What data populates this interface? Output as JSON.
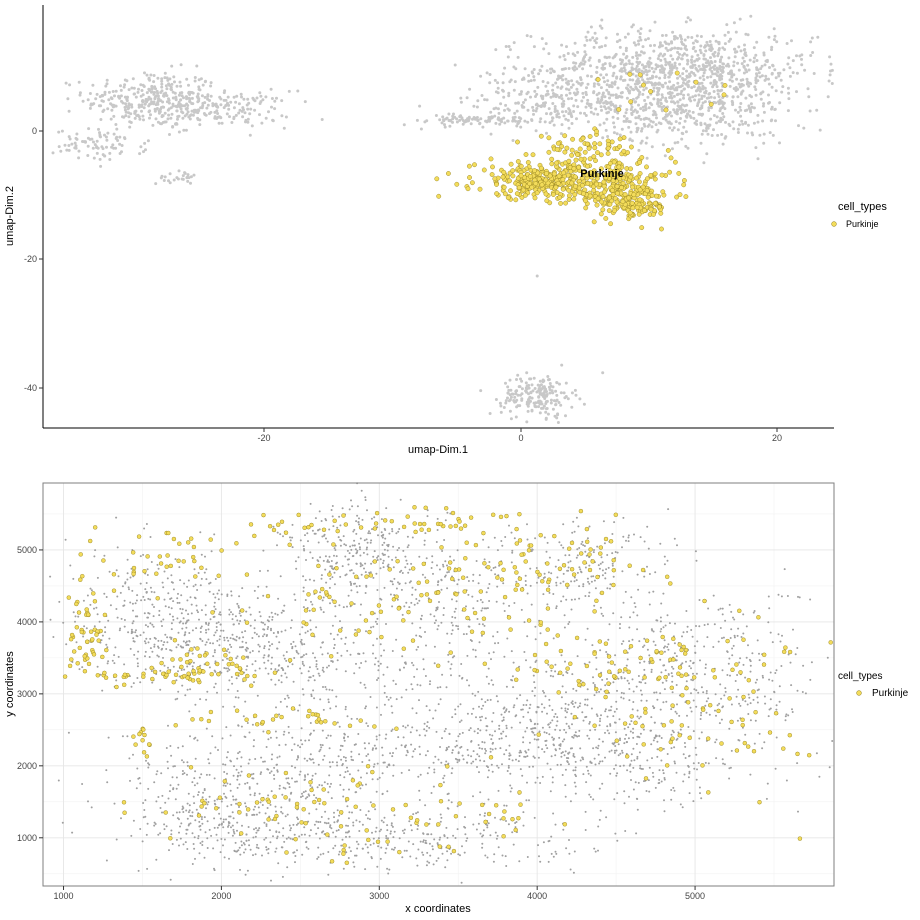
{
  "colors": {
    "background": "#ffffff",
    "grey_points": "#c8c8c8",
    "grey_points_spatial": "#a0a0a0",
    "highlight_fill": "#f3dc5a",
    "highlight_stroke": "#8c7a1a",
    "axis": "#000000",
    "grid": "#e6e6e6",
    "panel_border": "#7f7f7f"
  },
  "chart_data": [
    {
      "type": "scatter",
      "xlabel": "umap-Dim.1",
      "ylabel": "umap-Dim.2",
      "xlim": [
        -37.5,
        24.5
      ],
      "ylim": [
        -46,
        19
      ],
      "x_ticks": [
        -20,
        0,
        20
      ],
      "y_ticks": [
        0,
        -20,
        -40
      ],
      "tick_labels_x": [
        "-20",
        "0",
        "20"
      ],
      "tick_labels_y": [
        "0",
        "-20",
        "-40"
      ],
      "grid": false,
      "legend": {
        "title": "cell_types",
        "entries": [
          "Purkinje"
        ],
        "placement": "right"
      },
      "annotations": [
        {
          "text": "Purkinje",
          "x": 6.3,
          "y": -6.5
        }
      ],
      "series": [
        {
          "style": "grey",
          "clusters": [
            {
              "center": [
                -29,
                4.5
              ],
              "sd": [
                2.6,
                2.2
              ],
              "n": 300
            },
            {
              "center": [
                -24,
                3
              ],
              "sd": [
                3.0,
                1.4
              ],
              "n": 180
            },
            {
              "center": [
                -33,
                -2.5
              ],
              "sd": [
                1.8,
                1.2
              ],
              "n": 80
            },
            {
              "center": [
                -27,
                -7.5
              ],
              "sd": [
                0.8,
                0.5
              ],
              "n": 25
            },
            {
              "center": [
                12,
                9
              ],
              "sd": [
                5.5,
                3.2
              ],
              "n": 900
            },
            {
              "center": [
                4,
                4
              ],
              "sd": [
                4.0,
                2.2
              ],
              "n": 300
            },
            {
              "center": [
                14,
                2
              ],
              "sd": [
                3.5,
                2.5
              ],
              "n": 260
            },
            {
              "center": [
                -4,
                1.3
              ],
              "sd": [
                3.0,
                0.4
              ],
              "n": 90
            },
            {
              "center": [
                1.3,
                -41
              ],
              "sd": [
                1.4,
                1.6
              ],
              "n": 190
            },
            {
              "center": [
                1.2,
                -22.5
              ],
              "sd": [
                0.2,
                0.2
              ],
              "n": 1
            }
          ]
        },
        {
          "name": "Purkinje",
          "style": "highlight",
          "clusters": [
            {
              "center": [
                2,
                -8
              ],
              "sd": [
                2.8,
                1.4
              ],
              "n": 320
            },
            {
              "center": [
                7.5,
                -9
              ],
              "sd": [
                2.2,
                2.0
              ],
              "n": 240
            },
            {
              "center": [
                9,
                -12
              ],
              "sd": [
                1.2,
                1.0
              ],
              "n": 80
            },
            {
              "center": [
                5,
                -3
              ],
              "sd": [
                2.0,
                1.0
              ],
              "n": 60
            },
            {
              "center": [
                10,
                6
              ],
              "sd": [
                4.0,
                3.0
              ],
              "n": 14
            }
          ]
        }
      ]
    },
    {
      "type": "scatter",
      "xlabel": "x coordinates",
      "ylabel": "y coordinates",
      "xlim": [
        870,
        5880
      ],
      "ylim": [
        330,
        5930
      ],
      "x_ticks": [
        1000,
        2000,
        3000,
        4000,
        5000
      ],
      "y_ticks": [
        1000,
        2000,
        3000,
        4000,
        5000
      ],
      "tick_labels_x": [
        "1000",
        "2000",
        "3000",
        "4000",
        "5000"
      ],
      "tick_labels_y": [
        "1000",
        "2000",
        "3000",
        "4000",
        "5000"
      ],
      "grid": true,
      "legend": {
        "title": "cell_types",
        "entries": [
          "Purkinje"
        ],
        "placement": "right"
      },
      "series": [
        {
          "style": "grey",
          "clusters": [
            {
              "center": [
                1600,
                4100
              ],
              "sd": [
                300,
                450
              ],
              "n": 320
            },
            {
              "center": [
                2200,
                3900
              ],
              "sd": [
                300,
                300
              ],
              "n": 160
            },
            {
              "center": [
                2900,
                4900
              ],
              "sd": [
                260,
                380
              ],
              "n": 330
            },
            {
              "center": [
                2600,
                3300
              ],
              "sd": [
                450,
                300
              ],
              "n": 200
            },
            {
              "center": [
                2300,
                1900
              ],
              "sd": [
                500,
                350
              ],
              "n": 340
            },
            {
              "center": [
                2900,
                1000
              ],
              "sd": [
                700,
                250
              ],
              "n": 430
            },
            {
              "center": [
                3400,
                2300
              ],
              "sd": [
                500,
                350
              ],
              "n": 260
            },
            {
              "center": [
                3500,
                4200
              ],
              "sd": [
                280,
                450
              ],
              "n": 200
            },
            {
              "center": [
                4100,
                2600
              ],
              "sd": [
                400,
                450
              ],
              "n": 330
            },
            {
              "center": [
                4300,
                4800
              ],
              "sd": [
                280,
                320
              ],
              "n": 180
            },
            {
              "center": [
                5000,
                3300
              ],
              "sd": [
                400,
                600
              ],
              "n": 430
            },
            {
              "center": [
                4600,
                2100
              ],
              "sd": [
                400,
                350
              ],
              "n": 210
            },
            {
              "center": [
                2000,
                1200
              ],
              "sd": [
                250,
                250
              ],
              "n": 150
            },
            {
              "center": [
                1900,
                3500
              ],
              "sd": [
                400,
                250
              ],
              "n": 120
            }
          ]
        },
        {
          "name": "Purkinje",
          "style": "highlight",
          "clusters": [
            {
              "center": [
                1150,
                3850
              ],
              "sd": [
                60,
                300
              ],
              "n": 45
            },
            {
              "center": [
                1600,
                3250
              ],
              "sd": [
                300,
                50
              ],
              "n": 45
            },
            {
              "center": [
                1700,
                4850
              ],
              "sd": [
                350,
                200
              ],
              "n": 40
            },
            {
              "center": [
                1950,
                3450
              ],
              "sd": [
                150,
                150
              ],
              "n": 30
            },
            {
              "center": [
                2400,
                2650
              ],
              "sd": [
                300,
                80
              ],
              "n": 30
            },
            {
              "center": [
                3100,
                5400
              ],
              "sd": [
                450,
                80
              ],
              "n": 45
            },
            {
              "center": [
                2900,
                4300
              ],
              "sd": [
                400,
                450
              ],
              "n": 55
            },
            {
              "center": [
                3700,
                4700
              ],
              "sd": [
                350,
                400
              ],
              "n": 60
            },
            {
              "center": [
                4600,
                3500
              ],
              "sd": [
                500,
                250
              ],
              "n": 70
            },
            {
              "center": [
                4200,
                4850
              ],
              "sd": [
                300,
                250
              ],
              "n": 35
            },
            {
              "center": [
                5000,
                2700
              ],
              "sd": [
                350,
                550
              ],
              "n": 70
            },
            {
              "center": [
                2300,
                1450
              ],
              "sd": [
                400,
                250
              ],
              "n": 40
            },
            {
              "center": [
                3300,
                1300
              ],
              "sd": [
                500,
                300
              ],
              "n": 50
            },
            {
              "center": [
                1500,
                2400
              ],
              "sd": [
                50,
                150
              ],
              "n": 12
            }
          ]
        }
      ]
    }
  ]
}
